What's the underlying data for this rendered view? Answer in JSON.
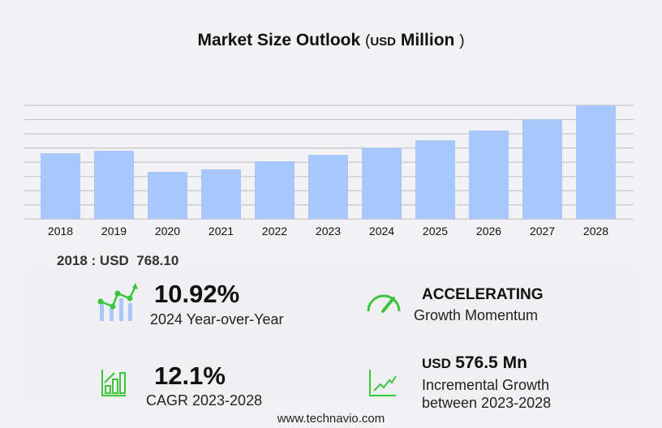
{
  "chart_data": {
    "type": "bar",
    "title": "Market Size Outlook",
    "unit_prefix": "(",
    "unit_currency": "USD",
    "unit_label": "Million",
    "unit_suffix": ")",
    "categories": [
      "2018",
      "2019",
      "2020",
      "2021",
      "2022",
      "2023",
      "2024",
      "2025",
      "2026",
      "2027",
      "2028"
    ],
    "values": [
      768.1,
      797,
      551,
      579,
      674,
      749,
      831,
      919,
      1033,
      1162,
      1326
    ],
    "ylim": [
      0,
      1326
    ],
    "grid": true,
    "bar_color": "#a8c8fc",
    "grid_color": "#c4c4c8"
  },
  "base_year": {
    "label": "2018 : USD",
    "value": "768.10"
  },
  "stats": {
    "yoy": {
      "value": "10.92%",
      "label": "2024 Year-over-Year"
    },
    "momentum": {
      "value": "ACCELERATING",
      "label": "Growth Momentum"
    },
    "cagr": {
      "value": "12.1%",
      "label": "CAGR 2023-2028"
    },
    "incremental": {
      "currency": "USD",
      "value": "576.5 Mn",
      "label1": "Incremental Growth",
      "label2": "between 2023-2028"
    }
  },
  "accent_color": "#3cc43c",
  "footer": "www.technavio.com"
}
